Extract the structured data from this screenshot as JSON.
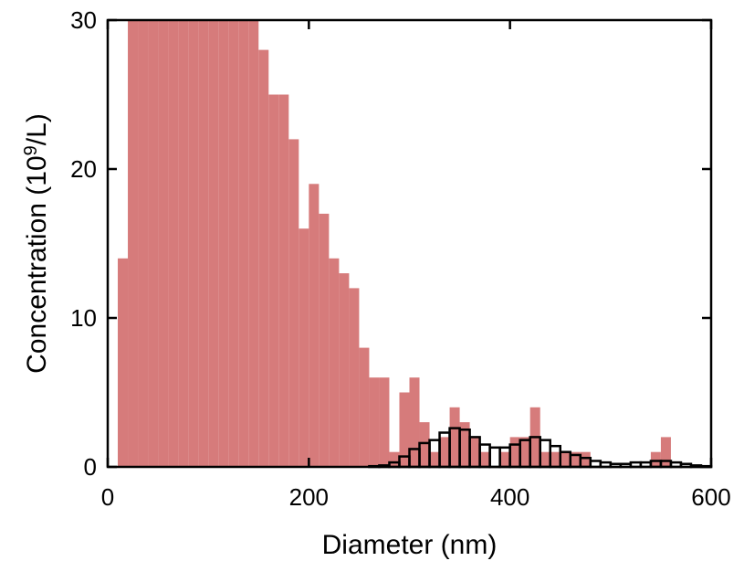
{
  "chart_data": {
    "type": "bar",
    "xlabel": "Diameter (nm)",
    "ylabel_parts": {
      "pre": "Concentration (10",
      "sup": "9",
      "post": "/L)"
    },
    "xlim": [
      0,
      600
    ],
    "ylim": [
      0,
      30
    ],
    "xticks": [
      0,
      200,
      400,
      600
    ],
    "yticks": [
      0,
      10,
      20,
      30
    ],
    "bin_width": 10,
    "grid": false,
    "legend": "none",
    "series": [
      {
        "color": "#d67b7b",
        "style": "filled",
        "bins_start": [
          10,
          20,
          30,
          40,
          50,
          60,
          70,
          80,
          90,
          100,
          110,
          120,
          130,
          140,
          150,
          160,
          170,
          180,
          190,
          200,
          210,
          220,
          230,
          240,
          250,
          260,
          270,
          280,
          290,
          300,
          310,
          320,
          330,
          340,
          350,
          360,
          370,
          380,
          390,
          400,
          410,
          420,
          430,
          440,
          450,
          460,
          470,
          480,
          490,
          500,
          510,
          520,
          530,
          540,
          550,
          560,
          570,
          580,
          590
        ],
        "values": [
          14,
          30,
          30,
          30,
          30,
          30,
          30,
          30,
          30,
          30,
          30,
          30,
          30,
          30,
          28,
          25,
          25,
          22,
          16,
          19,
          17,
          14,
          13,
          12,
          8,
          6,
          6,
          1,
          5,
          6,
          3,
          1,
          2,
          4,
          3,
          2,
          1,
          0,
          1,
          2,
          2,
          4,
          1,
          1,
          1,
          1,
          1,
          0,
          0,
          0,
          0,
          0,
          0,
          1,
          2,
          0,
          0,
          0,
          0
        ]
      },
      {
        "color": "#000000",
        "style": "outline",
        "bins_start": [
          260,
          270,
          280,
          290,
          300,
          310,
          320,
          330,
          340,
          350,
          360,
          370,
          380,
          390,
          400,
          410,
          420,
          430,
          440,
          450,
          460,
          470,
          480,
          490,
          500,
          510,
          520,
          530,
          540,
          550,
          560,
          570,
          580,
          590
        ],
        "values": [
          0.05,
          0.1,
          0.3,
          0.7,
          1.2,
          1.6,
          1.8,
          2.3,
          2.6,
          2.5,
          2.0,
          1.5,
          1.3,
          1.3,
          1.5,
          1.8,
          2.0,
          1.8,
          1.4,
          1.0,
          0.8,
          0.6,
          0.4,
          0.3,
          0.2,
          0.2,
          0.3,
          0.3,
          0.4,
          0.4,
          0.3,
          0.2,
          0.1,
          0.05
        ]
      }
    ]
  }
}
